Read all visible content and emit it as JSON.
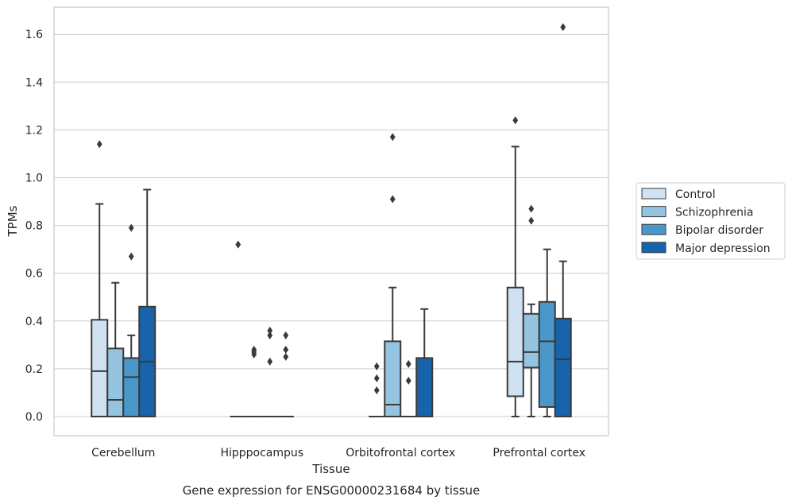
{
  "chart_data": {
    "type": "boxplot",
    "xlabel": "Tissue",
    "ylabel": "TPMs",
    "caption": "Gene expression for ENSG00000231684 by tissue",
    "ylim": [
      -0.08,
      1.72
    ],
    "yticks": [
      0.0,
      0.2,
      0.4,
      0.6,
      0.8,
      1.0,
      1.2,
      1.4,
      1.6
    ],
    "ytick_labels": [
      "0.0",
      "0.2",
      "0.4",
      "0.6",
      "0.8",
      "1.0",
      "1.2",
      "1.4",
      "1.6"
    ],
    "grid": true,
    "legend_position": "right",
    "categories": [
      "Cerebellum",
      "Hipppocampus",
      "Orbitofrontal cortex",
      "Prefrontal cortex"
    ],
    "series": [
      {
        "name": "Control",
        "color": "#d0e1f2",
        "boxes": [
          {
            "whislo": 0.0,
            "q1": 0.0,
            "med": 0.19,
            "q3": 0.405,
            "whishi": 0.89,
            "fliers": [
              1.14
            ]
          },
          {
            "whislo": 0.0,
            "q1": 0.0,
            "med": 0.0,
            "q3": 0.0,
            "whishi": 0.0,
            "fliers": [
              0.72
            ]
          },
          {
            "whislo": 0.0,
            "q1": 0.0,
            "med": 0.0,
            "q3": 0.0,
            "whishi": 0.0,
            "fliers": [
              0.21,
              0.16,
              0.11
            ]
          },
          {
            "whislo": 0.0,
            "q1": 0.085,
            "med": 0.23,
            "q3": 0.54,
            "whishi": 1.13,
            "fliers": [
              1.24
            ]
          }
        ]
      },
      {
        "name": "Schizophrenia",
        "color": "#94c4df",
        "boxes": [
          {
            "whislo": 0.0,
            "q1": 0.0,
            "med": 0.07,
            "q3": 0.285,
            "whishi": 0.56,
            "fliers": []
          },
          {
            "whislo": 0.0,
            "q1": 0.0,
            "med": 0.0,
            "q3": 0.0,
            "whishi": 0.0,
            "fliers": [
              0.28,
              0.26,
              0.27
            ]
          },
          {
            "whislo": 0.0,
            "q1": 0.0,
            "med": 0.05,
            "q3": 0.315,
            "whishi": 0.54,
            "fliers": [
              1.17,
              0.91
            ]
          },
          {
            "whislo": 0.0,
            "q1": 0.205,
            "med": 0.27,
            "q3": 0.43,
            "whishi": 0.47,
            "fliers": [
              0.87,
              0.82
            ]
          }
        ]
      },
      {
        "name": "Bipolar disorder",
        "color": "#4a98c9",
        "boxes": [
          {
            "whislo": 0.0,
            "q1": 0.0,
            "med": 0.165,
            "q3": 0.245,
            "whishi": 0.34,
            "fliers": [
              0.79,
              0.67
            ]
          },
          {
            "whislo": 0.0,
            "q1": 0.0,
            "med": 0.0,
            "q3": 0.0,
            "whishi": 0.0,
            "fliers": [
              0.36,
              0.34,
              0.23
            ]
          },
          {
            "whislo": 0.0,
            "q1": 0.0,
            "med": 0.0,
            "q3": 0.0,
            "whishi": 0.0,
            "fliers": [
              0.22,
              0.15
            ]
          },
          {
            "whislo": 0.0,
            "q1": 0.04,
            "med": 0.315,
            "q3": 0.48,
            "whishi": 0.7,
            "fliers": []
          }
        ]
      },
      {
        "name": "Major depression",
        "color": "#1764ab",
        "boxes": [
          {
            "whislo": 0.0,
            "q1": 0.0,
            "med": 0.23,
            "q3": 0.46,
            "whishi": 0.95,
            "fliers": []
          },
          {
            "whislo": 0.0,
            "q1": 0.0,
            "med": 0.0,
            "q3": 0.0,
            "whishi": 0.0,
            "fliers": [
              0.34,
              0.28,
              0.25
            ]
          },
          {
            "whislo": 0.0,
            "q1": 0.0,
            "med": 0.0,
            "q3": 0.245,
            "whishi": 0.45,
            "fliers": []
          },
          {
            "whislo": 0.0,
            "q1": 0.0,
            "med": 0.24,
            "q3": 0.41,
            "whishi": 0.65,
            "fliers": [
              1.63
            ]
          }
        ]
      }
    ]
  },
  "colors": {
    "grid": "#cccccc",
    "axes_edge": "#cccccc",
    "box_line": "#3a3a3a",
    "text": "#262626",
    "legend_edge": "#cccccc"
  }
}
